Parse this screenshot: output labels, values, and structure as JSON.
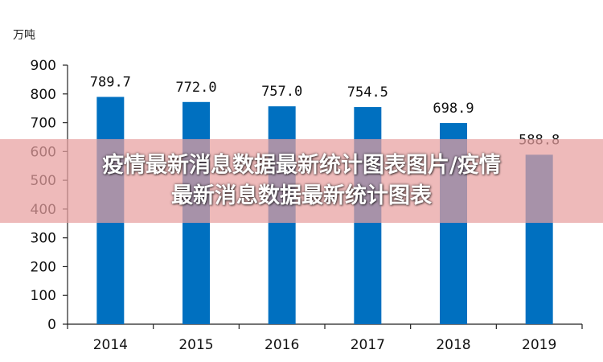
{
  "watermark": {
    "line1": "疫情最新消息数据最新统计图表图片/疫情",
    "line2": "最新消息数据最新统计图表"
  },
  "chart_data": {
    "type": "bar",
    "categories": [
      "2014",
      "2015",
      "2016",
      "2017",
      "2018",
      "2019"
    ],
    "values": [
      789.7,
      772.0,
      757.0,
      754.5,
      698.9,
      588.8
    ],
    "data_labels": [
      "789.7",
      "772.0",
      "757.0",
      "754.5",
      "698.9",
      "588.8"
    ],
    "ylabel": "万吨",
    "ylim": [
      0,
      900
    ],
    "yticks": [
      0,
      100,
      200,
      300,
      400,
      500,
      600,
      700,
      800,
      900
    ],
    "grid": false,
    "bar_color": "#0070C0",
    "overlay_color": "#E8A0A0"
  }
}
